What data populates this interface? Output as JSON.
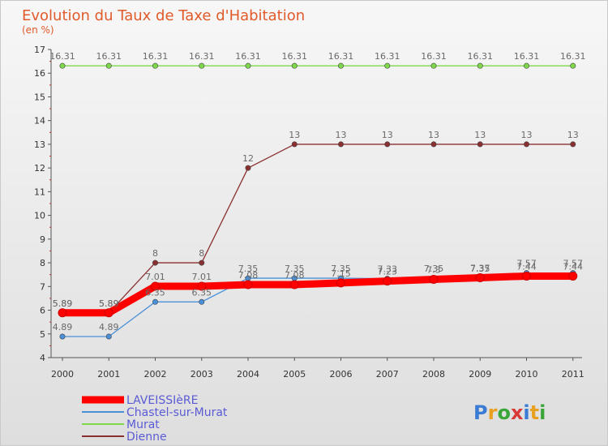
{
  "chart_data": {
    "type": "line",
    "title": "Evolution du Taux de Taxe d'Habitation",
    "subtitle": "(en %)",
    "xlabel": "",
    "ylabel": "",
    "ylim": [
      4,
      17
    ],
    "grid": false,
    "x": [
      "2000",
      "2001",
      "2002",
      "2003",
      "2004",
      "2005",
      "2006",
      "2007",
      "2008",
      "2009",
      "2010",
      "2011"
    ],
    "yticks": [
      "4",
      "5",
      "6",
      "7",
      "8",
      "9",
      "10",
      "11",
      "12",
      "13",
      "14",
      "15",
      "16",
      "17"
    ],
    "series": [
      {
        "name": "LAVEISSIèRE",
        "color": "#ff0000",
        "values": [
          5.89,
          5.89,
          7.01,
          7.01,
          7.08,
          7.08,
          7.15,
          7.23,
          7.3,
          7.37,
          7.44,
          7.44
        ],
        "labels": [
          "5.89",
          "5.89",
          "7.01",
          "7.01",
          "7.08",
          "7.08",
          "7.15",
          "7.23",
          "7.3",
          "7.37",
          "7.44",
          "7.44"
        ]
      },
      {
        "name": "Chastel-sur-Murat",
        "color": "#4a90d9",
        "values": [
          4.89,
          4.89,
          6.35,
          6.35,
          7.35,
          7.35,
          7.35,
          7.33,
          7.35,
          7.35,
          7.57,
          7.57
        ],
        "labels": [
          "4.89",
          "4.89",
          "6.35",
          "6.35",
          "7.35",
          "7.35",
          "7.35",
          "7.33",
          "7.35",
          "7.35",
          "7.57",
          "7.57"
        ]
      },
      {
        "name": "Murat",
        "color": "#7dd84a",
        "values": [
          16.31,
          16.31,
          16.31,
          16.31,
          16.31,
          16.31,
          16.31,
          16.31,
          16.31,
          16.31,
          16.31,
          16.31
        ],
        "labels": [
          "16.31",
          "16.31",
          "16.31",
          "16.31",
          "16.31",
          "16.31",
          "16.31",
          "16.31",
          "16.31",
          "16.31",
          "16.31",
          "16.31"
        ]
      },
      {
        "name": "Dienne",
        "color": "#8a3030",
        "values": [
          5.89,
          5.89,
          8,
          8,
          12,
          13,
          13,
          13,
          13,
          13,
          13,
          13
        ],
        "labels": [
          "5.89",
          "5.89",
          "8",
          "8",
          "12",
          "13",
          "13",
          "13",
          "13",
          "13",
          "13",
          "13"
        ]
      }
    ]
  },
  "logo": {
    "text": "Proxiti",
    "letters": [
      "P",
      "r",
      "o",
      "x",
      "i",
      "t",
      "i"
    ],
    "colors": [
      "#3a7bd5",
      "#e8a020",
      "#3aa63a",
      "#d83a3a",
      "#3a7bd5",
      "#e8a020",
      "#3aa63a"
    ]
  }
}
